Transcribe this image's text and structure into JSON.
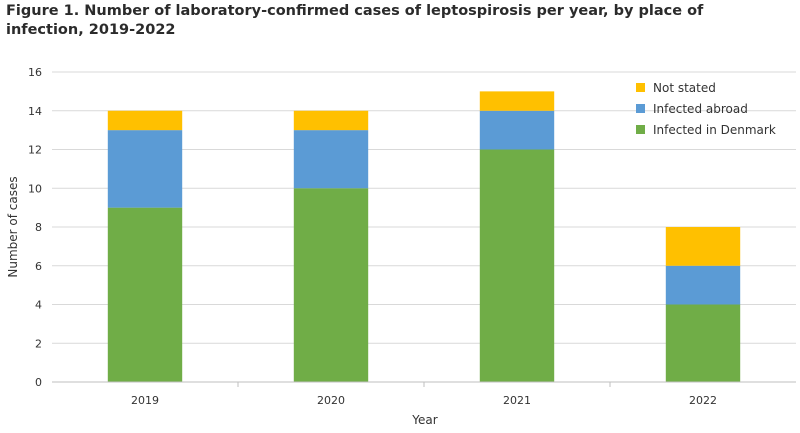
{
  "title": "Figure 1. Number of laboratory-confirmed cases of leptospirosis per year, by place of infection, 2019-2022",
  "chart_data": {
    "type": "bar",
    "stacked": true,
    "categories": [
      "2019",
      "2020",
      "2021",
      "2022"
    ],
    "series": [
      {
        "name": "Infected in Denmark",
        "color": "#70ad47",
        "values": [
          9,
          10,
          12,
          4
        ]
      },
      {
        "name": "Infected abroad",
        "color": "#5b9bd5",
        "values": [
          4,
          3,
          2,
          2
        ]
      },
      {
        "name": "Not stated",
        "color": "#ffc000",
        "values": [
          1,
          1,
          1,
          2
        ]
      }
    ],
    "xlabel": "Year",
    "ylabel": "Number of cases",
    "ylim": [
      0,
      16
    ],
    "yticks": [
      "0",
      "2",
      "4",
      "6",
      "8",
      "10",
      "12",
      "14",
      "16"
    ],
    "grid": true,
    "legend_position": "top-right",
    "legend_order": [
      "Not stated",
      "Infected abroad",
      "Infected in Denmark"
    ]
  }
}
